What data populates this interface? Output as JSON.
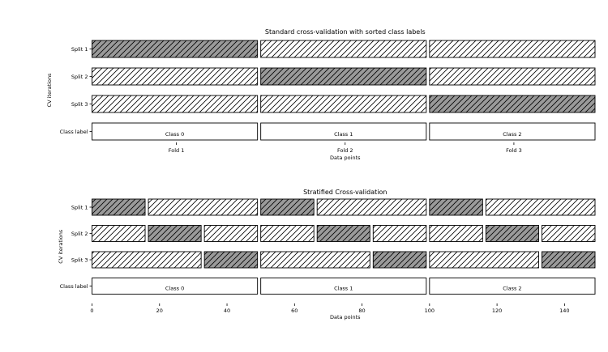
{
  "chart_data": [
    {
      "type": "bar",
      "orientation": "horizontal",
      "title": "Standard cross-validation with sorted class labels",
      "xlabel": "Data points",
      "ylabel": "CV iterations",
      "xlim": [
        0,
        150
      ],
      "rows": [
        "Split 1",
        "Split 2",
        "Split 3",
        "Class label"
      ],
      "xtick_labels": [
        {
          "x": 25,
          "label": "Fold 1"
        },
        {
          "x": 75,
          "label": "Fold 2"
        },
        {
          "x": 125,
          "label": "Fold 3"
        }
      ],
      "splits": [
        {
          "name": "Split 1",
          "segments": [
            {
              "start": 0,
              "end": 50,
              "role": "test"
            },
            {
              "start": 50,
              "end": 100,
              "role": "train"
            },
            {
              "start": 100,
              "end": 150,
              "role": "train"
            }
          ]
        },
        {
          "name": "Split 2",
          "segments": [
            {
              "start": 0,
              "end": 50,
              "role": "train"
            },
            {
              "start": 50,
              "end": 100,
              "role": "test"
            },
            {
              "start": 100,
              "end": 150,
              "role": "train"
            }
          ]
        },
        {
          "name": "Split 3",
          "segments": [
            {
              "start": 0,
              "end": 50,
              "role": "train"
            },
            {
              "start": 50,
              "end": 100,
              "role": "train"
            },
            {
              "start": 100,
              "end": 150,
              "role": "test"
            }
          ]
        }
      ],
      "class_labels": [
        {
          "start": 0,
          "end": 50,
          "label": "Class 0"
        },
        {
          "start": 50,
          "end": 100,
          "label": "Class 1"
        },
        {
          "start": 100,
          "end": 150,
          "label": "Class 2"
        }
      ]
    },
    {
      "type": "bar",
      "orientation": "horizontal",
      "title": "Stratified Cross-validation",
      "xlabel": "Data points",
      "ylabel": "CV iterations",
      "xlim": [
        0,
        150
      ],
      "rows": [
        "Split 1",
        "Split 2",
        "Split 3",
        "Class label"
      ],
      "xticks": [
        0,
        20,
        40,
        60,
        80,
        100,
        120,
        140
      ],
      "splits": [
        {
          "name": "Split 1",
          "segments": [
            {
              "start": 0,
              "end": 16.7,
              "role": "test"
            },
            {
              "start": 16.7,
              "end": 50,
              "role": "train"
            },
            {
              "start": 50,
              "end": 66.7,
              "role": "test"
            },
            {
              "start": 66.7,
              "end": 100,
              "role": "train"
            },
            {
              "start": 100,
              "end": 116.7,
              "role": "test"
            },
            {
              "start": 116.7,
              "end": 150,
              "role": "train"
            }
          ]
        },
        {
          "name": "Split 2",
          "segments": [
            {
              "start": 0,
              "end": 16.7,
              "role": "train"
            },
            {
              "start": 16.7,
              "end": 33.3,
              "role": "test"
            },
            {
              "start": 33.3,
              "end": 50,
              "role": "train"
            },
            {
              "start": 50,
              "end": 66.7,
              "role": "train"
            },
            {
              "start": 66.7,
              "end": 83.3,
              "role": "test"
            },
            {
              "start": 83.3,
              "end": 100,
              "role": "train"
            },
            {
              "start": 100,
              "end": 116.7,
              "role": "train"
            },
            {
              "start": 116.7,
              "end": 133.3,
              "role": "test"
            },
            {
              "start": 133.3,
              "end": 150,
              "role": "train"
            }
          ]
        },
        {
          "name": "Split 3",
          "segments": [
            {
              "start": 0,
              "end": 33.3,
              "role": "train"
            },
            {
              "start": 33.3,
              "end": 50,
              "role": "test"
            },
            {
              "start": 50,
              "end": 83.3,
              "role": "train"
            },
            {
              "start": 83.3,
              "end": 100,
              "role": "test"
            },
            {
              "start": 100,
              "end": 133.3,
              "role": "train"
            },
            {
              "start": 133.3,
              "end": 150,
              "role": "test"
            }
          ]
        }
      ],
      "class_labels": [
        {
          "start": 0,
          "end": 50,
          "label": "Class 0"
        },
        {
          "start": 50,
          "end": 100,
          "label": "Class 1"
        },
        {
          "start": 100,
          "end": 150,
          "label": "Class 2"
        }
      ]
    }
  ],
  "colors": {
    "test_fill": "#9a9a9a",
    "train_fill": "#ffffff",
    "edge": "#000000",
    "hatch": "#000000"
  }
}
